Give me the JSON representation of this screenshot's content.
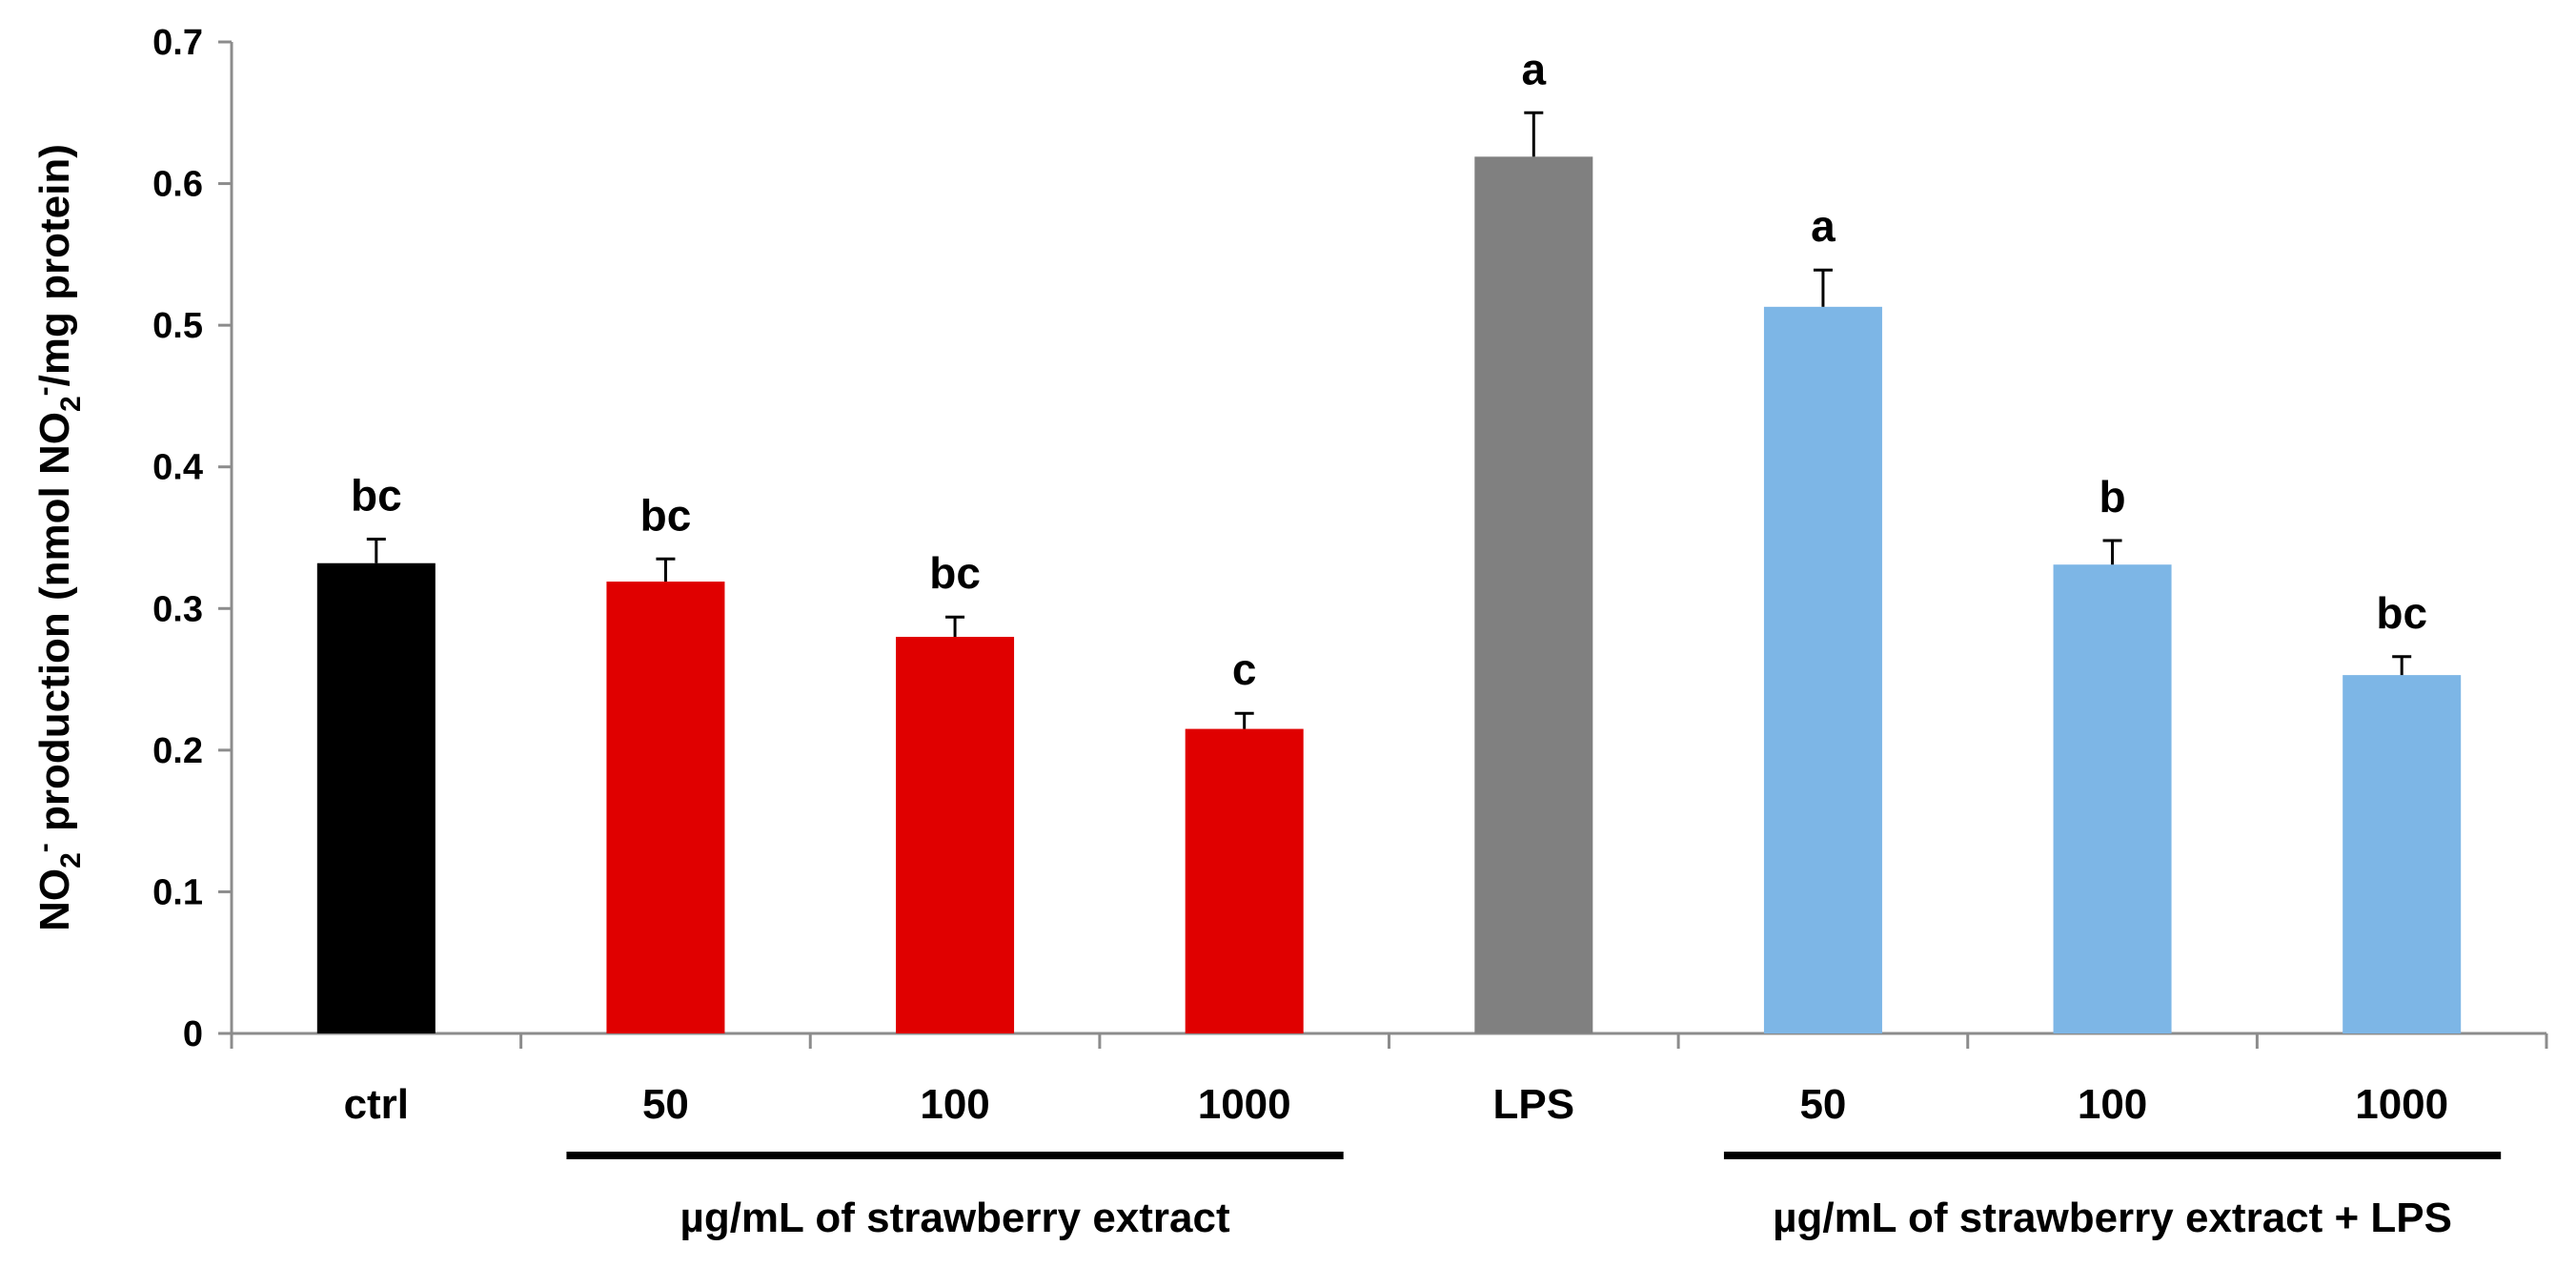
{
  "chart_data": {
    "type": "bar",
    "ylabel": {
      "parts": [
        {
          "text": "NO",
          "shift": "none"
        },
        {
          "text": "2",
          "shift": "sub"
        },
        {
          "text": "-",
          "shift": "super"
        },
        {
          "text": " production (nmol NO",
          "shift": "none"
        },
        {
          "text": "2",
          "shift": "sub"
        },
        {
          "text": "-",
          "shift": "super"
        },
        {
          "text": "/mg protein)",
          "shift": "none"
        }
      ]
    },
    "ylim": [
      0,
      0.7
    ],
    "yticks": [
      "0",
      "0.1",
      "0.2",
      "0.3",
      "0.4",
      "0.5",
      "0.6",
      "0.7"
    ],
    "categories": [
      "ctrl",
      "50",
      "100",
      "1000",
      "LPS",
      "50",
      "100",
      "1000"
    ],
    "values": [
      0.332,
      0.319,
      0.28,
      0.215,
      0.619,
      0.513,
      0.331,
      0.253
    ],
    "errors": [
      0.017,
      0.016,
      0.014,
      0.011,
      0.031,
      0.026,
      0.017,
      0.013
    ],
    "significance": [
      "bc",
      "bc",
      "bc",
      "c",
      "a",
      "a",
      "b",
      "bc"
    ],
    "colors": [
      "#000000",
      "#e00000",
      "#e00000",
      "#e00000",
      "#808080",
      "#7db6e6",
      "#7db6e6",
      "#7db6e6"
    ],
    "groups": [
      {
        "label": "µg/mL of strawberry extract",
        "from": 1,
        "to": 3
      },
      {
        "label": "µg/mL of strawberry extract + LPS",
        "from": 5,
        "to": 7
      }
    ]
  }
}
